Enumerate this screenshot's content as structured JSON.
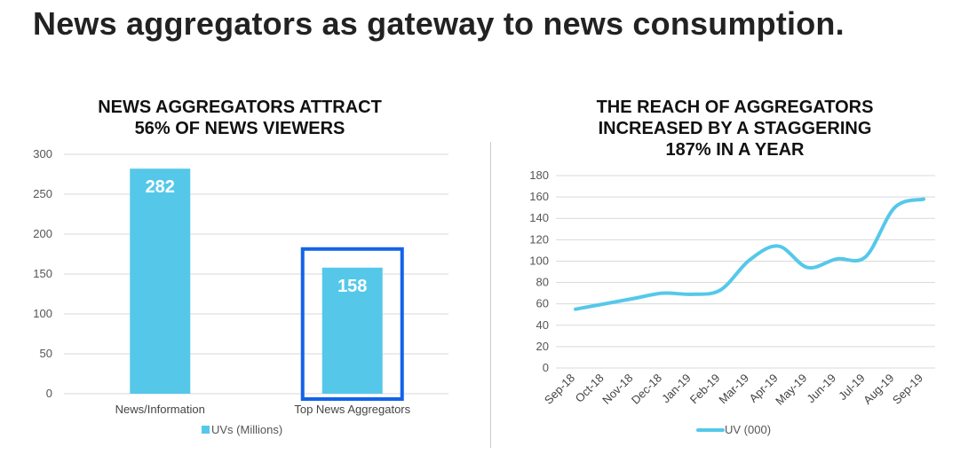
{
  "page": {
    "title": "News aggregators as gateway to news consumption."
  },
  "colors": {
    "bar": "#55C8EA",
    "line": "#55C8EA",
    "highlight_box": "#1463E8",
    "grid": "#d9d9d9"
  },
  "chart_data": [
    {
      "type": "bar",
      "title_lines": [
        "NEWS AGGREGATORS ATTRACT",
        "56% OF NEWS VIEWERS"
      ],
      "categories": [
        "News/Information",
        "Top News Aggregators"
      ],
      "series": [
        {
          "name": "UVs (Millions)",
          "values": [
            282,
            158
          ]
        }
      ],
      "data_labels": [
        "282",
        "158"
      ],
      "ylim": [
        0,
        300
      ],
      "yticks": [
        0,
        50,
        100,
        150,
        200,
        250,
        300
      ],
      "grid": true,
      "legend": "bottom",
      "highlighted_category": "Top News Aggregators"
    },
    {
      "type": "line",
      "title_lines": [
        "THE REACH OF AGGREGATORS",
        "INCREASED BY A STAGGERING",
        "187% IN A YEAR"
      ],
      "categories": [
        "Sep-18",
        "Oct-18",
        "Nov-18",
        "Dec-18",
        "Jan-19",
        "Feb-19",
        "Mar-19",
        "Apr-19",
        "May-19",
        "Jun-19",
        "Jul-19",
        "Aug-19",
        "Sep-19"
      ],
      "series": [
        {
          "name": "UV (000)",
          "values": [
            55,
            60,
            65,
            70,
            69,
            73,
            101,
            114,
            94,
            102,
            104,
            150,
            158
          ]
        }
      ],
      "ylim": [
        0,
        180
      ],
      "yticks": [
        0,
        20,
        40,
        60,
        80,
        100,
        120,
        140,
        160,
        180
      ],
      "grid": true,
      "smooth": true,
      "legend": "bottom"
    }
  ]
}
